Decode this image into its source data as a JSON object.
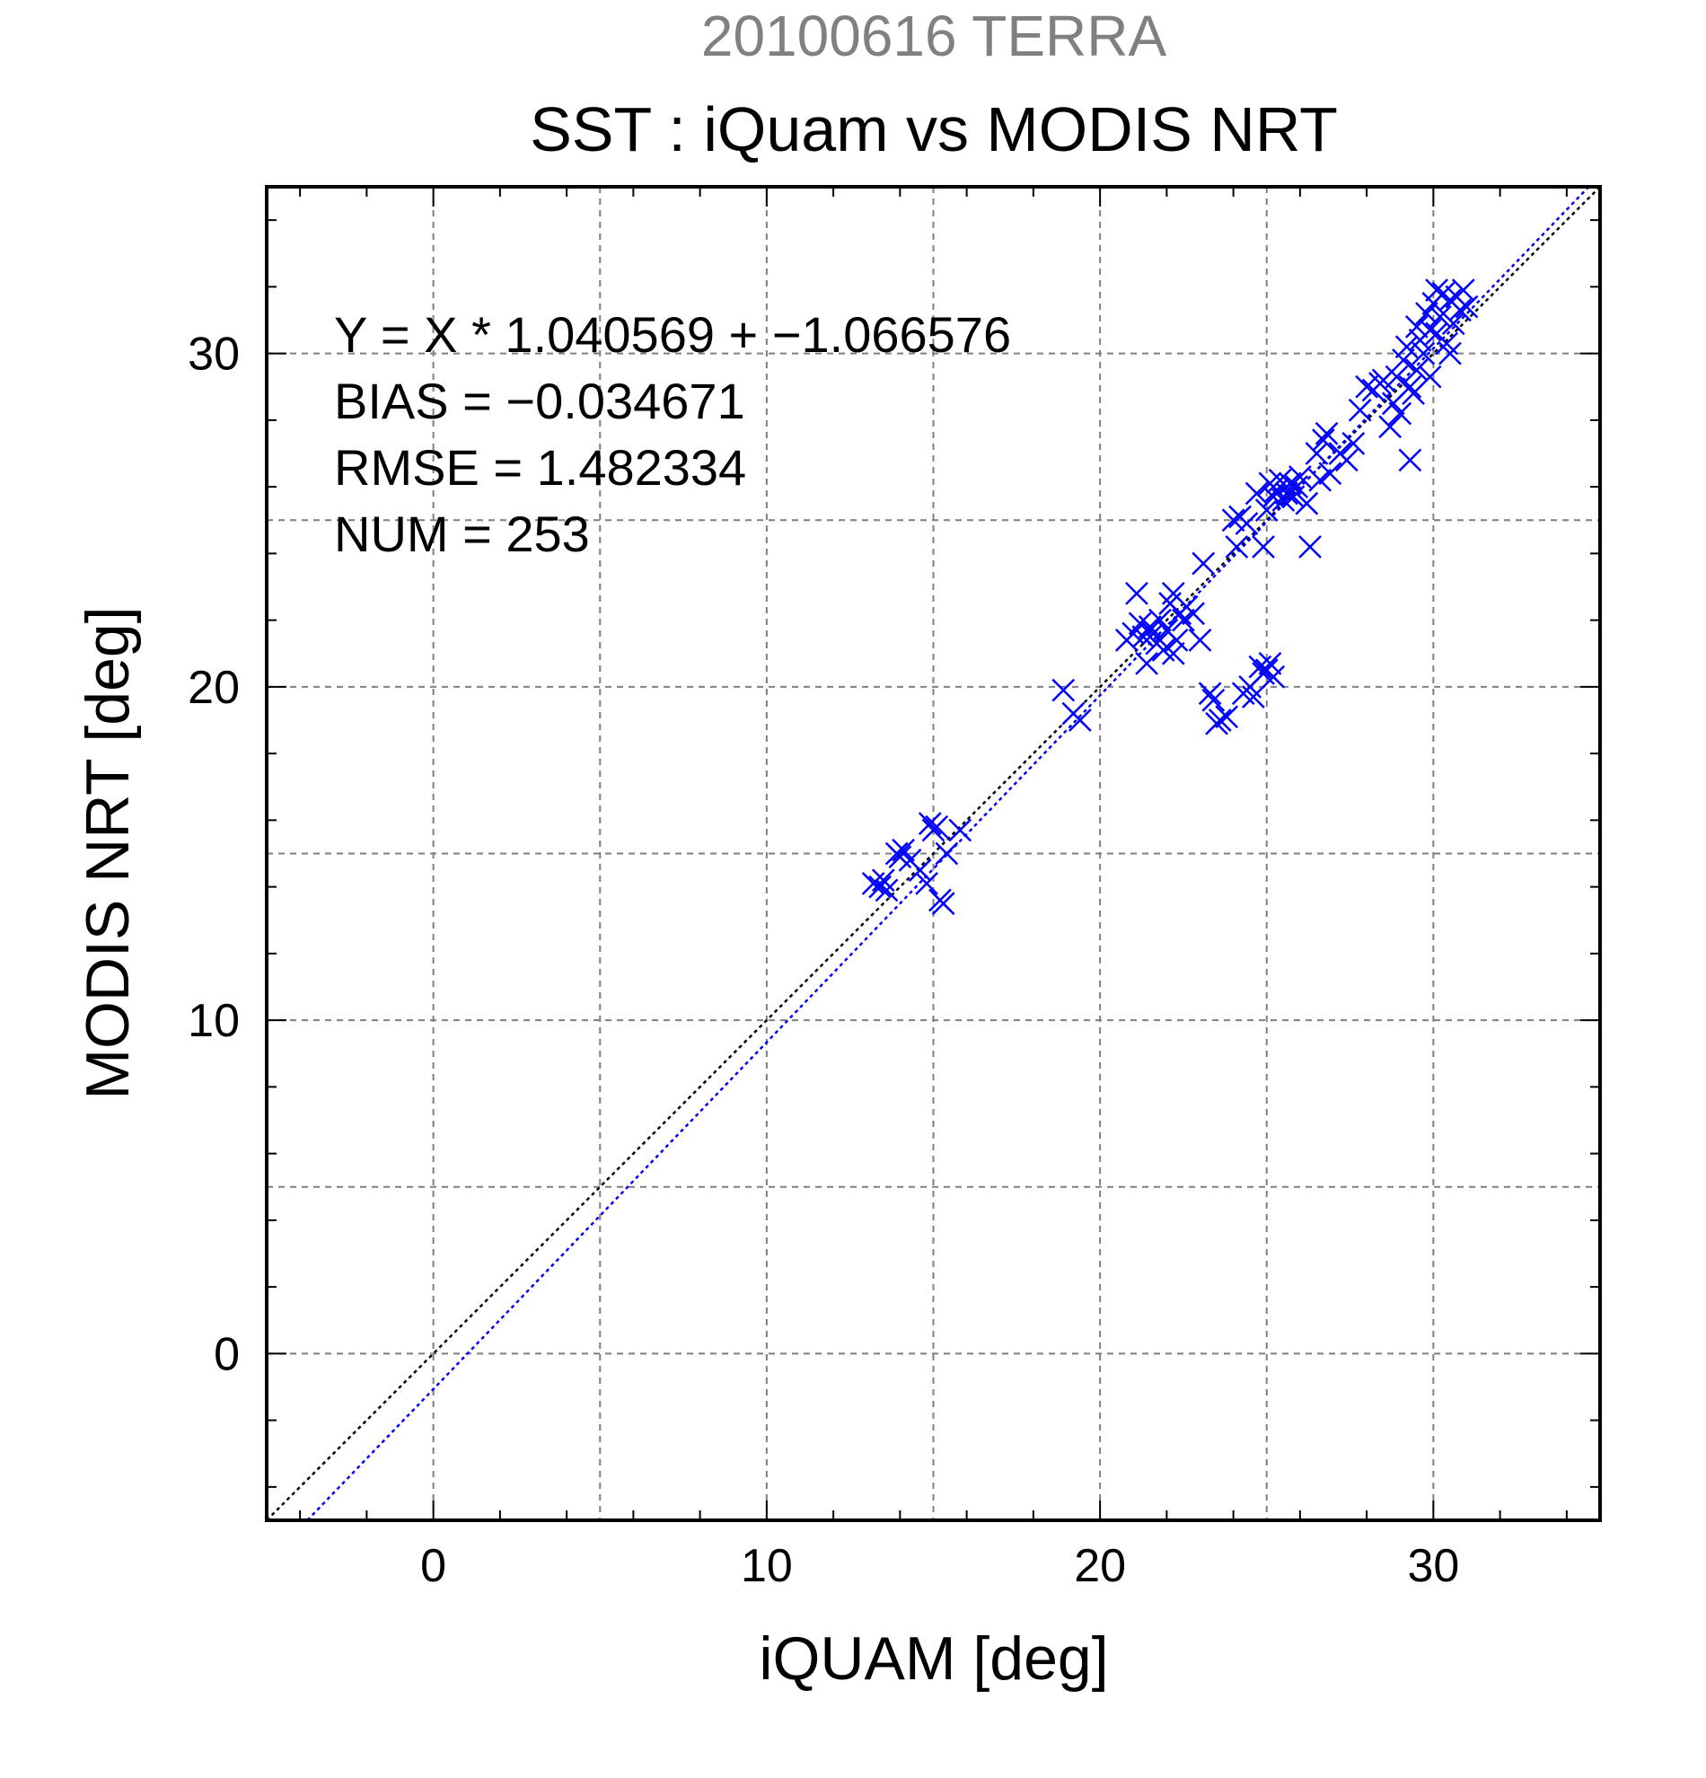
{
  "chart_data": {
    "type": "scatter",
    "suptitle": "20100616 TERRA",
    "title": "SST : iQuam vs MODIS NRT",
    "xlabel": "iQUAM [deg]",
    "ylabel": "MODIS NRT [deg]",
    "xlim": [
      -5,
      35
    ],
    "ylim": [
      -5,
      35
    ],
    "xticks": [
      0,
      10,
      20,
      30
    ],
    "yticks": [
      0,
      10,
      20,
      30
    ],
    "grid_at": [
      0,
      5,
      10,
      15,
      20,
      25,
      30
    ],
    "grid": true,
    "stats": [
      "Y = X * 1.040569 + −1.066576",
      "BIAS = −0.034671",
      "RMSE = 1.482334",
      "NUM = 253"
    ],
    "lines": [
      {
        "name": "1:1",
        "slope": 1.0,
        "intercept": 0.0,
        "color": "#000000"
      },
      {
        "name": "fit",
        "slope": 1.040569,
        "intercept": -1.066576,
        "color": "#0000ff"
      }
    ],
    "series": [
      {
        "marker": "x",
        "color": "#0000ff",
        "points": [
          [
            13.2,
            14.1
          ],
          [
            13.4,
            14.0
          ],
          [
            13.5,
            14.2
          ],
          [
            13.6,
            13.9
          ],
          [
            13.9,
            15.0
          ],
          [
            14.0,
            14.9
          ],
          [
            14.1,
            15.1
          ],
          [
            14.3,
            14.8
          ],
          [
            14.6,
            14.5
          ],
          [
            14.8,
            14.1
          ],
          [
            14.9,
            15.9
          ],
          [
            15.0,
            15.7
          ],
          [
            15.1,
            15.8
          ],
          [
            15.2,
            13.6
          ],
          [
            15.3,
            13.5
          ],
          [
            15.4,
            15.0
          ],
          [
            15.8,
            15.7
          ],
          [
            18.9,
            19.9
          ],
          [
            19.2,
            19.2
          ],
          [
            19.4,
            19.0
          ],
          [
            20.8,
            21.4
          ],
          [
            21.0,
            21.6
          ],
          [
            21.1,
            22.8
          ],
          [
            21.2,
            21.9
          ],
          [
            21.3,
            21.5
          ],
          [
            21.4,
            20.7
          ],
          [
            21.5,
            21.8
          ],
          [
            21.6,
            21.6
          ],
          [
            21.7,
            21.3
          ],
          [
            21.8,
            22.0
          ],
          [
            21.9,
            21.1
          ],
          [
            22.0,
            21.7
          ],
          [
            22.1,
            22.5
          ],
          [
            22.2,
            22.8
          ],
          [
            22.3,
            21.4
          ],
          [
            22.4,
            22.2
          ],
          [
            22.5,
            22.0
          ],
          [
            22.6,
            22.4
          ],
          [
            22.2,
            21.0
          ],
          [
            22.8,
            22.2
          ],
          [
            23.0,
            21.4
          ],
          [
            23.1,
            23.7
          ],
          [
            23.3,
            19.8
          ],
          [
            23.4,
            19.6
          ],
          [
            23.5,
            18.9
          ],
          [
            23.6,
            19.0
          ],
          [
            23.8,
            19.1
          ],
          [
            24.0,
            25.0
          ],
          [
            24.1,
            24.2
          ],
          [
            24.2,
            25.1
          ],
          [
            24.3,
            19.8
          ],
          [
            24.4,
            24.9
          ],
          [
            24.5,
            20.0
          ],
          [
            24.6,
            19.7
          ],
          [
            24.7,
            25.8
          ],
          [
            24.8,
            20.6
          ],
          [
            24.9,
            20.4
          ],
          [
            25.0,
            20.5
          ],
          [
            25.1,
            20.7
          ],
          [
            25.2,
            20.3
          ],
          [
            24.9,
            24.2
          ],
          [
            25.0,
            25.3
          ],
          [
            25.1,
            26.1
          ],
          [
            25.2,
            25.7
          ],
          [
            25.3,
            25.9
          ],
          [
            25.4,
            26.2
          ],
          [
            25.5,
            25.6
          ],
          [
            25.6,
            25.8
          ],
          [
            25.7,
            26.1
          ],
          [
            25.8,
            25.7
          ],
          [
            25.9,
            26.0
          ],
          [
            26.0,
            26.3
          ],
          [
            26.2,
            25.5
          ],
          [
            26.3,
            24.2
          ],
          [
            26.5,
            27.0
          ],
          [
            26.6,
            26.2
          ],
          [
            26.7,
            27.4
          ],
          [
            26.8,
            27.6
          ],
          [
            26.9,
            26.4
          ],
          [
            27.2,
            27.0
          ],
          [
            27.4,
            26.8
          ],
          [
            27.6,
            27.3
          ],
          [
            27.8,
            28.3
          ],
          [
            28.0,
            29.0
          ],
          [
            28.2,
            28.9
          ],
          [
            28.4,
            29.1
          ],
          [
            28.5,
            29.2
          ],
          [
            28.7,
            27.8
          ],
          [
            28.8,
            28.5
          ],
          [
            28.9,
            29.3
          ],
          [
            29.0,
            28.2
          ],
          [
            29.1,
            29.8
          ],
          [
            29.2,
            30.2
          ],
          [
            29.3,
            26.8
          ],
          [
            29.4,
            28.8
          ],
          [
            29.5,
            29.5
          ],
          [
            29.6,
            30.4
          ],
          [
            29.7,
            30.0
          ],
          [
            29.8,
            31.2
          ],
          [
            29.9,
            30.7
          ],
          [
            30.0,
            31.5
          ],
          [
            30.1,
            30.6
          ],
          [
            30.2,
            31.1
          ],
          [
            30.3,
            31.8
          ],
          [
            30.4,
            30.3
          ],
          [
            30.5,
            31.6
          ],
          [
            30.6,
            30.9
          ],
          [
            30.7,
            31.7
          ],
          [
            30.8,
            31.3
          ],
          [
            30.9,
            31.9
          ],
          [
            31.0,
            31.4
          ],
          [
            30.5,
            30.0
          ],
          [
            30.1,
            31.9
          ],
          [
            29.9,
            29.3
          ],
          [
            29.5,
            30.8
          ],
          [
            29.3,
            29.0
          ]
        ]
      }
    ]
  }
}
